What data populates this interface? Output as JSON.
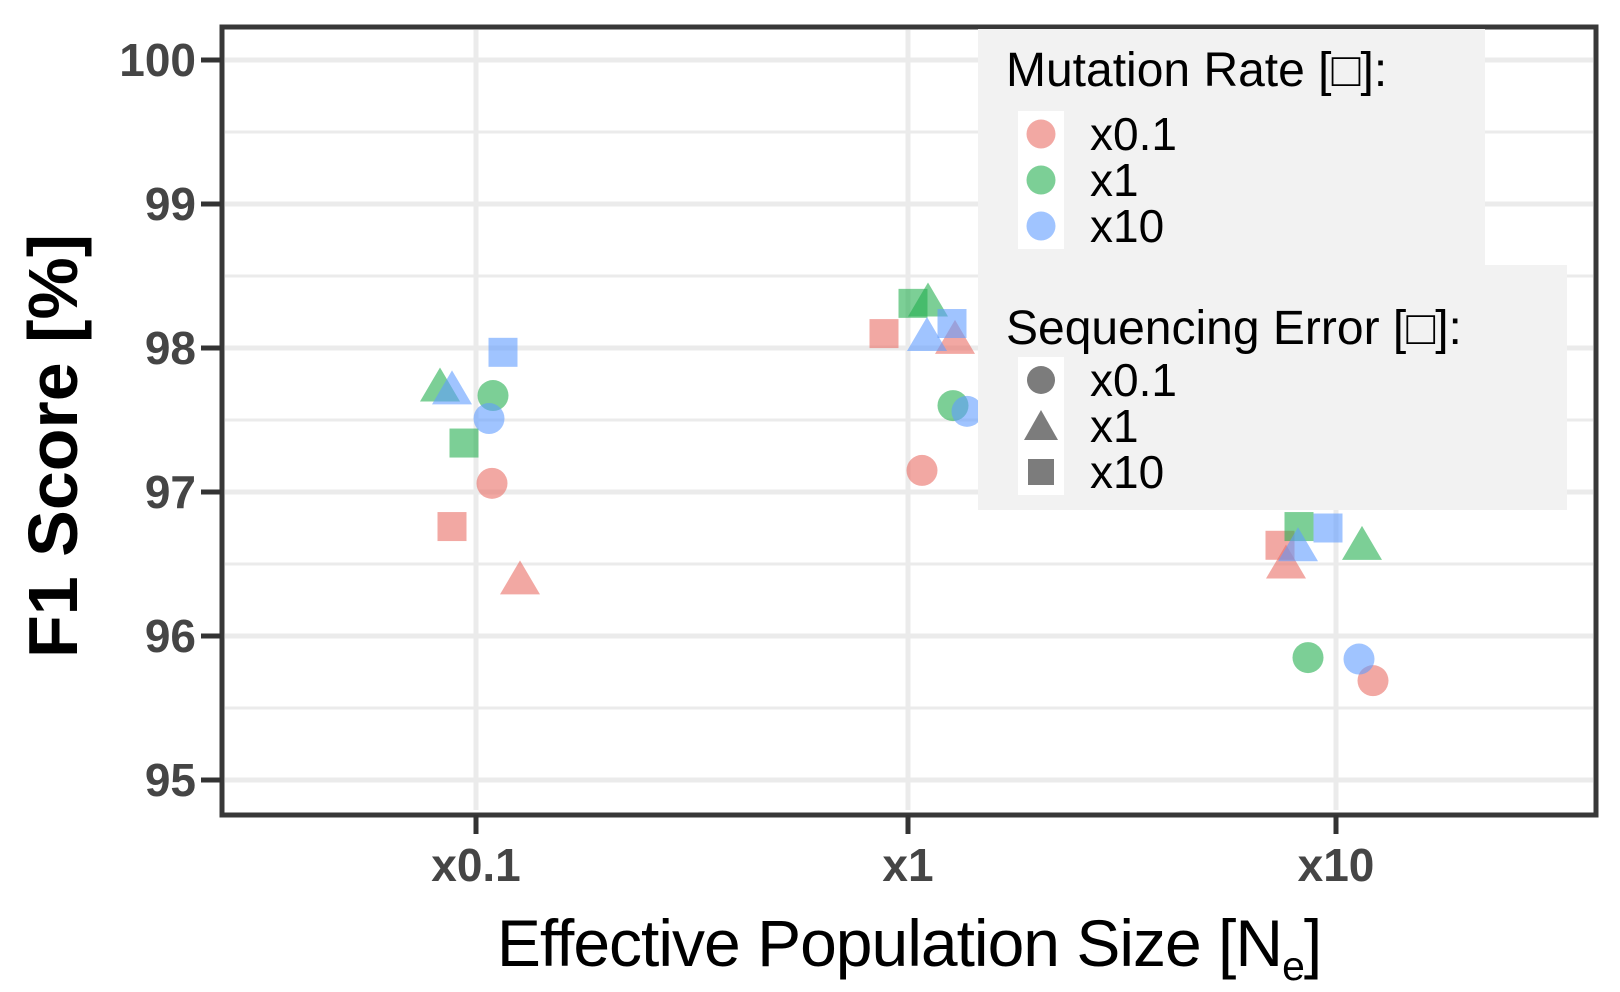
{
  "figure_title": "",
  "axes": {
    "ylabel": "F1 Score [%]",
    "xlabel_prefix": "Effective Population Size [N",
    "xlabel_subscript": "e",
    "xlabel_suffix": "]"
  },
  "legends": {
    "mutation": {
      "title": "Mutation Rate [□]:",
      "items": [
        {
          "label": "x0.1",
          "color_key": "red"
        },
        {
          "label": "x1",
          "color_key": "green"
        },
        {
          "label": "x10",
          "color_key": "blue"
        }
      ]
    },
    "seq_error": {
      "title": "Sequencing Error [□]:",
      "items": [
        {
          "label": "x0.1",
          "shape": "circle"
        },
        {
          "label": "x1",
          "shape": "triangle"
        },
        {
          "label": "x10",
          "shape": "square"
        }
      ]
    }
  },
  "colors": {
    "red": "rgba(233,110,102,0.6)",
    "green": "rgba(37,175,80,0.6)",
    "blue": "rgba(97,156,255,0.6)",
    "gray": "#7C7C7C",
    "grid": "#EBEBEB",
    "panel_border": "#383838",
    "tick": "#333333",
    "tick_label": "#454545",
    "legend_bg": "#F2F2F2"
  },
  "chart_data": {
    "type": "scatter",
    "title": "",
    "xlabel": "Effective Population Size [Ne]",
    "ylabel": "F1 Score [%]",
    "x_categories": [
      "x0.1",
      "x1",
      "x10"
    ],
    "y_ticks": [
      100,
      99,
      98,
      97,
      96,
      95
    ],
    "y_minor_ticks": [
      99.5,
      98.5,
      97.5,
      96.5,
      95.5
    ],
    "ylim": [
      94.77,
      100.23
    ],
    "grid": true,
    "legend_position": "inside top-right",
    "color_encodes": "Mutation Rate",
    "shape_encodes": "Sequencing Error",
    "points": [
      {
        "ne": "x0.1",
        "mu": "x0.1",
        "err": "x0.1",
        "f1": 97.06,
        "dx": 16
      },
      {
        "ne": "x0.1",
        "mu": "x0.1",
        "err": "x1",
        "f1": 96.4,
        "dx": 44
      },
      {
        "ne": "x0.1",
        "mu": "x0.1",
        "err": "x10",
        "f1": 96.76,
        "dx": -24
      },
      {
        "ne": "x0.1",
        "mu": "x1",
        "err": "x0.1",
        "f1": 97.67,
        "dx": 17
      },
      {
        "ne": "x0.1",
        "mu": "x1",
        "err": "x1",
        "f1": 97.74,
        "dx": -36
      },
      {
        "ne": "x0.1",
        "mu": "x1",
        "err": "x10",
        "f1": 97.34,
        "dx": -12
      },
      {
        "ne": "x0.1",
        "mu": "x10",
        "err": "x0.1",
        "f1": 97.51,
        "dx": 13
      },
      {
        "ne": "x0.1",
        "mu": "x10",
        "err": "x1",
        "f1": 97.72,
        "dx": -24
      },
      {
        "ne": "x0.1",
        "mu": "x10",
        "err": "x10",
        "f1": 97.97,
        "dx": 27
      },
      {
        "ne": "x1",
        "mu": "x0.1",
        "err": "x0.1",
        "f1": 97.15,
        "dx": 14
      },
      {
        "ne": "x1",
        "mu": "x0.1",
        "err": "x1",
        "f1": 98.07,
        "dx": 47
      },
      {
        "ne": "x1",
        "mu": "x0.1",
        "err": "x10",
        "f1": 98.1,
        "dx": -24
      },
      {
        "ne": "x1",
        "mu": "x1",
        "err": "x0.1",
        "f1": 97.6,
        "dx": 45
      },
      {
        "ne": "x1",
        "mu": "x1",
        "err": "x1",
        "f1": 98.33,
        "dx": 20
      },
      {
        "ne": "x1",
        "mu": "x1",
        "err": "x10",
        "f1": 98.31,
        "dx": 5
      },
      {
        "ne": "x1",
        "mu": "x10",
        "err": "x0.1",
        "f1": 97.56,
        "dx": 59
      },
      {
        "ne": "x1",
        "mu": "x10",
        "err": "x1",
        "f1": 98.09,
        "dx": 19
      },
      {
        "ne": "x1",
        "mu": "x10",
        "err": "x10",
        "f1": 98.17,
        "dx": 44
      },
      {
        "ne": "x10",
        "mu": "x0.1",
        "err": "x0.1",
        "f1": 95.69,
        "dx": 37
      },
      {
        "ne": "x10",
        "mu": "x0.1",
        "err": "x1",
        "f1": 96.51,
        "dx": -50
      },
      {
        "ne": "x10",
        "mu": "x0.1",
        "err": "x10",
        "f1": 96.63,
        "dx": -56
      },
      {
        "ne": "x10",
        "mu": "x1",
        "err": "x0.1",
        "f1": 95.85,
        "dx": -28
      },
      {
        "ne": "x10",
        "mu": "x1",
        "err": "x1",
        "f1": 96.64,
        "dx": 26
      },
      {
        "ne": "x10",
        "mu": "x1",
        "err": "x10",
        "f1": 96.76,
        "dx": -37
      },
      {
        "ne": "x10",
        "mu": "x10",
        "err": "x0.1",
        "f1": 95.84,
        "dx": 23
      },
      {
        "ne": "x10",
        "mu": "x10",
        "err": "x1",
        "f1": 96.63,
        "dx": -38
      },
      {
        "ne": "x10",
        "mu": "x10",
        "err": "x10",
        "f1": 96.75,
        "dx": -8
      }
    ]
  }
}
